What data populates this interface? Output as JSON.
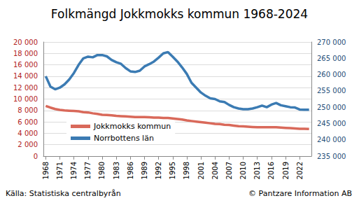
{
  "chart_data": {
    "type": "line",
    "title": "Folkmängd Jokkmokks kommun 1968-2024",
    "annotations": [
      "Källa: Statistiska centralbyrån",
      "© Pantzare Information AB"
    ],
    "categories": [
      "1968",
      null,
      null,
      "1971",
      null,
      null,
      "1974",
      null,
      null,
      "1977",
      null,
      null,
      "1980",
      null,
      null,
      "1983",
      null,
      null,
      "1986",
      null,
      null,
      "1989",
      null,
      null,
      "1992",
      null,
      null,
      "1995",
      null,
      null,
      "1998",
      null,
      null,
      "2001",
      null,
      null,
      "2004",
      null,
      null,
      "2007",
      null,
      null,
      "2010",
      null,
      null,
      "2013",
      null,
      null,
      "2016",
      null,
      null,
      "2019",
      null,
      null,
      "2022",
      null,
      null
    ],
    "series": [
      {
        "name": "Jokkmokks kommun",
        "color": "#d9695a",
        "axis": "y",
        "values": [
          8800,
          8500,
          8250,
          8100,
          8000,
          7950,
          7900,
          7850,
          7700,
          7650,
          7500,
          7400,
          7250,
          7200,
          7150,
          7050,
          7000,
          6950,
          6900,
          6850,
          6850,
          6850,
          6800,
          6750,
          6750,
          6700,
          6700,
          6600,
          6500,
          6400,
          6250,
          6150,
          6050,
          5950,
          5850,
          5750,
          5650,
          5600,
          5500,
          5450,
          5350,
          5250,
          5200,
          5150,
          5100,
          5050,
          5050,
          5050,
          5050,
          5050,
          5000,
          4950,
          4900,
          4850,
          4800,
          4800,
          4750
        ]
      },
      {
        "name": "Norrbottens län",
        "color": "#3b7bb3",
        "axis": "y2",
        "values": [
          259500,
          256300,
          255500,
          256000,
          257000,
          258500,
          260500,
          263000,
          265000,
          265500,
          265300,
          266000,
          266000,
          265600,
          264500,
          263800,
          263300,
          262000,
          261000,
          260800,
          261200,
          262500,
          263200,
          264000,
          265200,
          266500,
          266900,
          265500,
          264000,
          262200,
          260200,
          257500,
          256000,
          254500,
          253500,
          252700,
          252500,
          251800,
          251600,
          250700,
          250000,
          249600,
          249400,
          249400,
          249600,
          250000,
          250500,
          250000,
          250800,
          251300,
          250600,
          250300,
          250000,
          249900,
          249300,
          249200,
          249200
        ]
      }
    ],
    "ylim": [
      0,
      20000
    ],
    "yticks": [
      0,
      {
        "value": 2000,
        "label": "2 000"
      },
      {
        "value": 4000,
        "label": "4 000"
      },
      {
        "value": 6000,
        "label": "6 000"
      },
      {
        "value": 8000,
        "label": "8 000"
      },
      {
        "value": 10000,
        "label": "10 000"
      },
      {
        "value": 12000,
        "label": "12 000"
      },
      {
        "value": 14000,
        "label": "14 000"
      },
      {
        "value": 16000,
        "label": "16 000"
      },
      {
        "value": 18000,
        "label": "18 000"
      },
      {
        "value": 20000,
        "label": "20 000"
      }
    ],
    "y2lim": [
      235000,
      270000
    ],
    "y2ticks": [
      {
        "value": 235000,
        "label": "235 000"
      },
      {
        "value": 240000,
        "label": "240 000"
      },
      {
        "value": 245000,
        "label": "245 000"
      },
      {
        "value": 250000,
        "label": "250 000"
      },
      {
        "value": 255000,
        "label": "255 000"
      },
      {
        "value": 260000,
        "label": "260 000"
      },
      {
        "value": 265000,
        "label": "265 000"
      },
      {
        "value": 270000,
        "label": "270 000"
      }
    ],
    "grid": true,
    "legend": "lower left"
  }
}
